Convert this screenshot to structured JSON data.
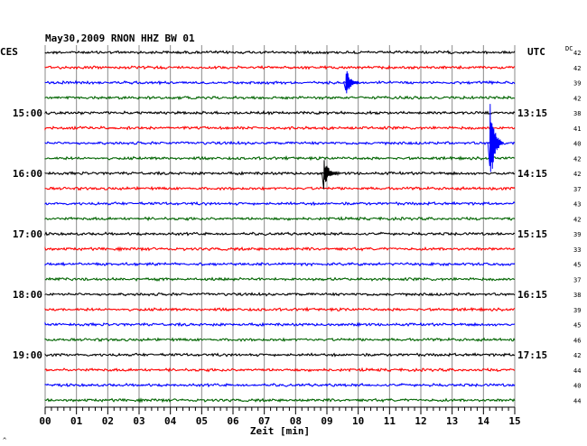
{
  "chart_data": {
    "type": "line",
    "title": "May30,2009   RNON HHZ BW 01",
    "left_axis_label": "CES",
    "right_axis_label": "UTC",
    "dc_label": "DC",
    "xlabel": "Zeit [min]",
    "x_ticks": [
      "00",
      "01",
      "02",
      "03",
      "04",
      "05",
      "06",
      "07",
      "08",
      "09",
      "10",
      "11",
      "12",
      "13",
      "14",
      "15"
    ],
    "xlim": [
      0,
      15
    ],
    "left_time_labels": [
      {
        "row": 4,
        "text": "15:00"
      },
      {
        "row": 8,
        "text": "16:00"
      },
      {
        "row": 12,
        "text": "17:00"
      },
      {
        "row": 16,
        "text": "18:00"
      },
      {
        "row": 20,
        "text": "19:00"
      }
    ],
    "right_time_labels": [
      {
        "row": 4,
        "text": "13:15"
      },
      {
        "row": 8,
        "text": "14:15"
      },
      {
        "row": 12,
        "text": "15:15"
      },
      {
        "row": 16,
        "text": "16:15"
      },
      {
        "row": 20,
        "text": "17:15"
      }
    ],
    "trace_colors": [
      "#000000",
      "#ff0000",
      "#0000ff",
      "#006400"
    ],
    "dc_values": [
      "42",
      "42",
      "39",
      "42",
      "38",
      "41",
      "40",
      "42",
      "42",
      "37",
      "43",
      "42",
      "39",
      "33",
      "45",
      "37",
      "38",
      "39",
      "45",
      "46",
      "42",
      "44",
      "40",
      "44"
    ],
    "events": [
      {
        "row": 6,
        "minute": 14.2,
        "amplitude": 3.5
      },
      {
        "row": 8,
        "minute": 8.9,
        "amplitude": 1.2
      },
      {
        "row": 2,
        "minute": 9.6,
        "amplitude": 1.1
      }
    ],
    "footer_mark": "^"
  }
}
